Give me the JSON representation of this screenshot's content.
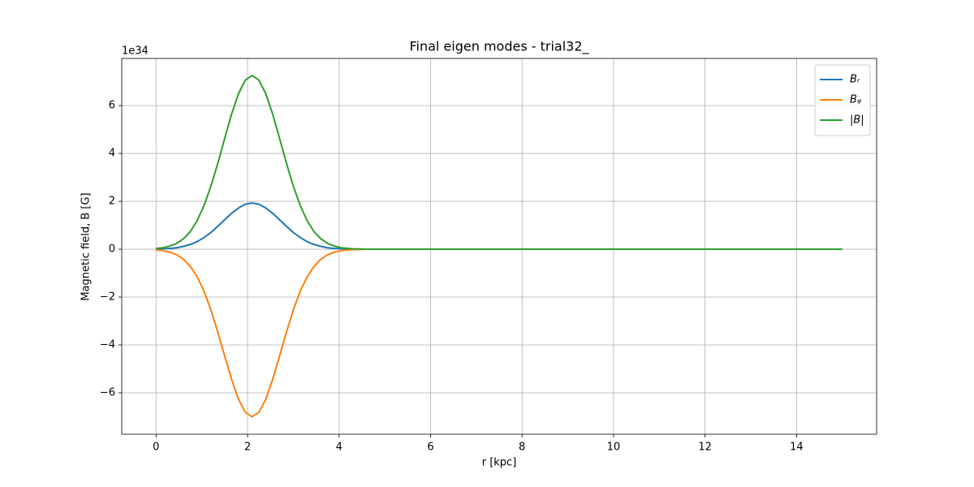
{
  "chart_data": {
    "type": "line",
    "title": "Final eigen modes - trial32_",
    "x_label": "r [kpc]",
    "y_label": "Magnetic field, B [G]",
    "y_offset_label": "1e34",
    "x": [
      0,
      0.15,
      0.3,
      0.45,
      0.6,
      0.75,
      0.9,
      1.05,
      1.2,
      1.35,
      1.5,
      1.65,
      1.8,
      1.95,
      2.1,
      2.25,
      2.4,
      2.55,
      2.7,
      2.85,
      3,
      3.15,
      3.3,
      3.45,
      3.6,
      3.75,
      3.9,
      4.05,
      4.2,
      4.35,
      4.5,
      4.65,
      4.8,
      5.25,
      6,
      7.5,
      9,
      10.5,
      12,
      13.5,
      15
    ],
    "series": [
      {
        "name": "Bᵣ",
        "color": "#1f77b4",
        "values": [
          0.01,
          0.02,
          0.03,
          0.06,
          0.12,
          0.2,
          0.32,
          0.49,
          0.7,
          0.96,
          1.23,
          1.5,
          1.72,
          1.88,
          1.93,
          1.88,
          1.72,
          1.5,
          1.23,
          0.96,
          0.7,
          0.49,
          0.32,
          0.2,
          0.12,
          0.06,
          0.03,
          0.02,
          0.01,
          0,
          0,
          0,
          0,
          0,
          0,
          0,
          0,
          0,
          0,
          0,
          0
        ]
      },
      {
        "name": "Bᵩ",
        "color": "#ff7f0e",
        "values": [
          -0.03,
          -0.06,
          -0.12,
          -0.23,
          -0.42,
          -0.72,
          -1.16,
          -1.76,
          -2.54,
          -3.47,
          -4.46,
          -5.43,
          -6.26,
          -6.81,
          -7.0,
          -6.81,
          -6.26,
          -5.43,
          -4.46,
          -3.47,
          -2.54,
          -1.76,
          -1.16,
          -0.72,
          -0.42,
          -0.23,
          -0.12,
          -0.06,
          -0.03,
          -0.01,
          -0.01,
          0,
          0,
          0,
          0,
          0,
          0,
          0,
          0,
          0,
          0
        ]
      },
      {
        "name": "|B|",
        "color": "#2ca02c",
        "values": [
          0.03,
          0.06,
          0.13,
          0.24,
          0.44,
          0.74,
          1.2,
          1.83,
          2.64,
          3.59,
          4.63,
          5.64,
          6.49,
          7.06,
          7.26,
          7.06,
          6.49,
          5.64,
          4.63,
          3.59,
          2.64,
          1.83,
          1.2,
          0.74,
          0.44,
          0.24,
          0.13,
          0.06,
          0.03,
          0.01,
          0.01,
          0,
          0,
          0,
          0,
          0,
          0,
          0,
          0,
          0,
          0
        ]
      }
    ],
    "xlim": [
      -0.75,
      15.75
    ],
    "xticks": [
      0,
      2,
      4,
      6,
      8,
      10,
      12,
      14
    ],
    "ylim": [
      -7.73,
      7.97
    ],
    "yticks": [
      {
        "value": -6,
        "label": "−6"
      },
      {
        "value": -4,
        "label": "−4"
      },
      {
        "value": -2,
        "label": "−2"
      },
      0,
      2,
      4,
      6
    ],
    "grid": true,
    "legend": "upper right"
  }
}
